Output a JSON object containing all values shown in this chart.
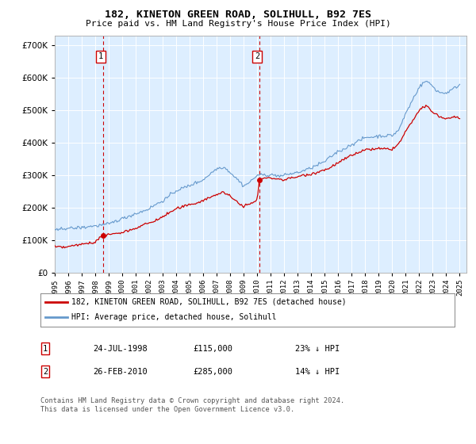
{
  "title": "182, KINETON GREEN ROAD, SOLIHULL, B92 7ES",
  "subtitle": "Price paid vs. HM Land Registry's House Price Index (HPI)",
  "legend_line1": "182, KINETON GREEN ROAD, SOLIHULL, B92 7ES (detached house)",
  "legend_line2": "HPI: Average price, detached house, Solihull",
  "sale1_date": "24-JUL-1998",
  "sale1_price": "£115,000",
  "sale1_hpi": "23% ↓ HPI",
  "sale1_year": 1998.56,
  "sale1_value": 115000,
  "sale2_date": "26-FEB-2010",
  "sale2_price": "£285,000",
  "sale2_hpi": "14% ↓ HPI",
  "sale2_year": 2010.15,
  "sale2_value": 285000,
  "footer": "Contains HM Land Registry data © Crown copyright and database right 2024.\nThis data is licensed under the Open Government Licence v3.0.",
  "plot_color_red": "#cc0000",
  "plot_color_blue": "#6699cc",
  "background_color": "#ddeeff",
  "grid_color": "#ffffff",
  "ylim": [
    0,
    730000
  ],
  "yticks": [
    0,
    100000,
    200000,
    300000,
    400000,
    500000,
    600000,
    700000
  ],
  "xmin": 1995,
  "xmax": 2025.5,
  "xticks": [
    1995,
    1996,
    1997,
    1998,
    1999,
    2000,
    2001,
    2002,
    2003,
    2004,
    2005,
    2006,
    2007,
    2008,
    2009,
    2010,
    2011,
    2012,
    2013,
    2014,
    2015,
    2016,
    2017,
    2018,
    2019,
    2020,
    2021,
    2022,
    2023,
    2024,
    2025
  ]
}
